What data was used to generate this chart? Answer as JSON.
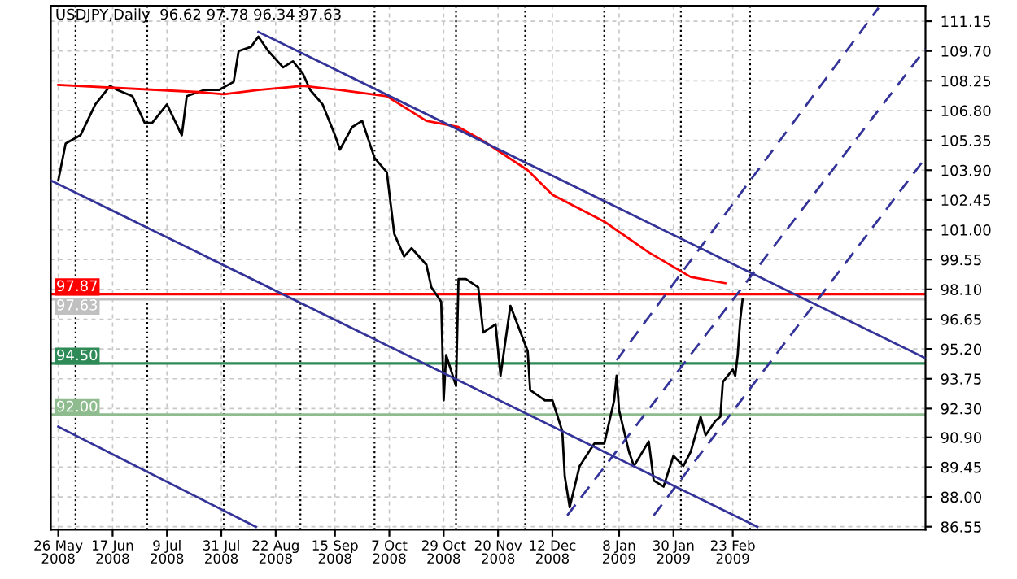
{
  "chart_data": {
    "type": "line",
    "title": "USDJPY,Daily  96.62 97.78 96.34 97.63",
    "xlim": [
      "2008-05-23",
      "2009-05-12"
    ],
    "ylim": [
      86.4,
      111.9
    ],
    "xticks": [
      {
        "value": "2008-05-26",
        "label": "26 May 2008"
      },
      {
        "value": "2008-06-17",
        "label": "17 Jun 2008"
      },
      {
        "value": "2008-07-09",
        "label": "9 Jul 2008"
      },
      {
        "value": "2008-07-31",
        "label": "31 Jul 2008"
      },
      {
        "value": "2008-08-22",
        "label": "22 Aug 2008"
      },
      {
        "value": "2008-09-15",
        "label": "15 Sep 2008"
      },
      {
        "value": "2008-10-07",
        "label": "7 Oct 2008"
      },
      {
        "value": "2008-10-29",
        "label": "29 Oct 2008"
      },
      {
        "value": "2008-11-20",
        "label": "20 Nov 2008"
      },
      {
        "value": "2008-12-12",
        "label": "12 Dec 2008"
      },
      {
        "value": "2009-01-08",
        "label": "8 Jan 2009"
      },
      {
        "value": "2009-01-30",
        "label": "30 Jan 2009"
      },
      {
        "value": "2009-02-23",
        "label": "23 Feb 2009"
      }
    ],
    "yticks": [
      {
        "value": 86.55,
        "label": "86.55"
      },
      {
        "value": 88.0,
        "label": "88.00"
      },
      {
        "value": 89.45,
        "label": "89.45"
      },
      {
        "value": 90.9,
        "label": "90.90"
      },
      {
        "value": 92.3,
        "label": "92.30"
      },
      {
        "value": 93.75,
        "label": "93.75"
      },
      {
        "value": 95.2,
        "label": "95.20"
      },
      {
        "value": 96.65,
        "label": "96.65"
      },
      {
        "value": 98.1,
        "label": "98.10"
      },
      {
        "value": 99.55,
        "label": "99.55"
      },
      {
        "value": 101.0,
        "label": "101.00"
      },
      {
        "value": 102.45,
        "label": "102.45"
      },
      {
        "value": 103.9,
        "label": "103.90"
      },
      {
        "value": 105.35,
        "label": "105.35"
      },
      {
        "value": 106.8,
        "label": "106.80"
      },
      {
        "value": 108.25,
        "label": "108.25"
      },
      {
        "value": 109.7,
        "label": "109.70"
      },
      {
        "value": 111.15,
        "label": "111.15"
      }
    ],
    "grid": true,
    "series": [
      {
        "color": "#000000",
        "x": [
          "2008-05-26",
          "2008-05-29",
          "2008-06-04",
          "2008-06-10",
          "2008-06-16",
          "2008-06-19",
          "2008-06-25",
          "2008-06-30",
          "2008-07-03",
          "2008-07-09",
          "2008-07-15",
          "2008-07-17",
          "2008-07-24",
          "2008-07-30",
          "2008-08-05",
          "2008-08-07",
          "2008-08-12",
          "2008-08-15",
          "2008-08-19",
          "2008-08-25",
          "2008-08-29",
          "2008-09-02",
          "2008-09-05",
          "2008-09-10",
          "2008-09-15",
          "2008-09-17",
          "2008-09-22",
          "2008-09-26",
          "2008-10-01",
          "2008-10-06",
          "2008-10-09",
          "2008-10-13",
          "2008-10-16",
          "2008-10-22",
          "2008-10-24",
          "2008-10-28",
          "2008-10-29",
          "2008-10-30",
          "2008-11-03",
          "2008-11-04",
          "2008-11-07",
          "2008-11-12",
          "2008-11-14",
          "2008-11-19",
          "2008-11-21",
          "2008-11-25",
          "2008-12-02",
          "2008-12-03",
          "2008-12-09",
          "2008-12-12",
          "2008-12-16",
          "2008-12-17",
          "2008-12-19",
          "2008-12-23",
          "2008-12-29",
          "2009-01-02",
          "2009-01-06",
          "2009-01-07",
          "2009-01-08",
          "2009-01-12",
          "2009-01-14",
          "2009-01-20",
          "2009-01-22",
          "2009-01-26",
          "2009-01-30",
          "2009-02-03",
          "2009-02-06",
          "2009-02-10",
          "2009-02-12",
          "2009-02-16",
          "2009-02-18",
          "2009-02-19",
          "2009-02-23",
          "2009-02-24",
          "2009-02-25",
          "2009-02-26",
          "2009-02-27"
        ],
        "values": [
          103.4,
          105.2,
          105.6,
          107.1,
          108.0,
          107.8,
          107.5,
          106.2,
          106.2,
          107.1,
          105.6,
          107.5,
          107.8,
          107.8,
          108.2,
          109.7,
          109.9,
          110.4,
          109.7,
          108.9,
          109.2,
          108.6,
          107.8,
          107.1,
          105.6,
          104.9,
          106.0,
          106.3,
          104.5,
          103.8,
          100.8,
          99.7,
          100.1,
          99.3,
          98.2,
          97.5,
          92.7,
          94.9,
          93.4,
          98.6,
          98.6,
          98.2,
          96.0,
          96.4,
          93.9,
          97.3,
          95.1,
          93.2,
          92.7,
          92.7,
          91.2,
          89.0,
          87.5,
          89.5,
          90.6,
          90.6,
          92.7,
          93.9,
          92.2,
          90.2,
          89.5,
          90.7,
          88.8,
          88.5,
          90.0,
          89.5,
          90.2,
          91.9,
          91.0,
          91.7,
          91.9,
          93.6,
          94.2,
          93.9,
          94.9,
          96.6,
          97.63
        ]
      },
      {
        "color": "#ff0000",
        "x": [
          "2008-05-26",
          "2008-07-22",
          "2008-08-01",
          "2008-08-15",
          "2008-09-02",
          "2008-09-17",
          "2008-10-06",
          "2008-10-22",
          "2008-11-04",
          "2008-11-13",
          "2008-12-02",
          "2008-12-12",
          "2009-01-02",
          "2009-01-20",
          "2009-02-06",
          "2009-02-20"
        ],
        "values": [
          108.05,
          107.7,
          107.6,
          107.8,
          108.0,
          107.8,
          107.5,
          106.3,
          106.0,
          105.4,
          103.9,
          102.7,
          101.4,
          99.9,
          98.7,
          98.4
        ]
      },
      {
        "color": "#333399",
        "x": [
          "2008-08-15",
          "2009-05-12"
        ],
        "values": [
          110.63,
          94.75
        ]
      },
      {
        "color": "#333399",
        "x": [
          "2008-05-23",
          "2009-03-05"
        ],
        "values": [
          103.4,
          86.54
        ]
      },
      {
        "color": "#333399",
        "x": [
          "2008-05-26",
          "2008-08-14"
        ],
        "values": [
          91.42,
          86.54
        ]
      },
      {
        "color": "#333399",
        "line_style": "dashed",
        "x": [
          "2009-01-07",
          "2009-04-23"
        ],
        "values": [
          94.65,
          111.8
        ]
      },
      {
        "color": "#333399",
        "line_style": "dashed",
        "x": [
          "2008-12-18",
          "2009-05-12"
        ],
        "values": [
          87.1,
          109.8
        ]
      },
      {
        "color": "#333399",
        "line_style": "dashed",
        "x": [
          "2009-01-22",
          "2009-05-12"
        ],
        "values": [
          87.1,
          104.5
        ]
      }
    ],
    "ref_lines": [
      {
        "axis": "y",
        "value": 97.87,
        "label": "97.87",
        "color": "#ff0000"
      },
      {
        "axis": "y",
        "value": 97.63,
        "label": "97.63",
        "color": "#c0c0c0"
      },
      {
        "axis": "y",
        "value": 94.5,
        "label": "94.50",
        "color": "#2e8b57"
      },
      {
        "axis": "y",
        "value": 92.0,
        "label": "92.00",
        "color": "#8fbc8f"
      },
      {
        "axis": "x",
        "value": "2008-06-02",
        "color": "#000000",
        "line_style": "dotted"
      },
      {
        "axis": "x",
        "value": "2008-07-01",
        "color": "#000000",
        "line_style": "dotted"
      },
      {
        "axis": "x",
        "value": "2008-08-01",
        "color": "#000000",
        "line_style": "dotted"
      },
      {
        "axis": "x",
        "value": "2008-09-01",
        "color": "#000000",
        "line_style": "dotted"
      },
      {
        "axis": "x",
        "value": "2008-10-01",
        "color": "#000000",
        "line_style": "dotted"
      },
      {
        "axis": "x",
        "value": "2008-11-03",
        "color": "#000000",
        "line_style": "dotted"
      },
      {
        "axis": "x",
        "value": "2008-12-01",
        "color": "#000000",
        "line_style": "dotted"
      },
      {
        "axis": "x",
        "value": "2009-01-02",
        "color": "#000000",
        "line_style": "dotted"
      },
      {
        "axis": "x",
        "value": "2009-02-02",
        "color": "#000000",
        "line_style": "dotted"
      },
      {
        "axis": "x",
        "value": "2009-03-02",
        "color": "#000000",
        "line_style": "dotted"
      }
    ]
  }
}
